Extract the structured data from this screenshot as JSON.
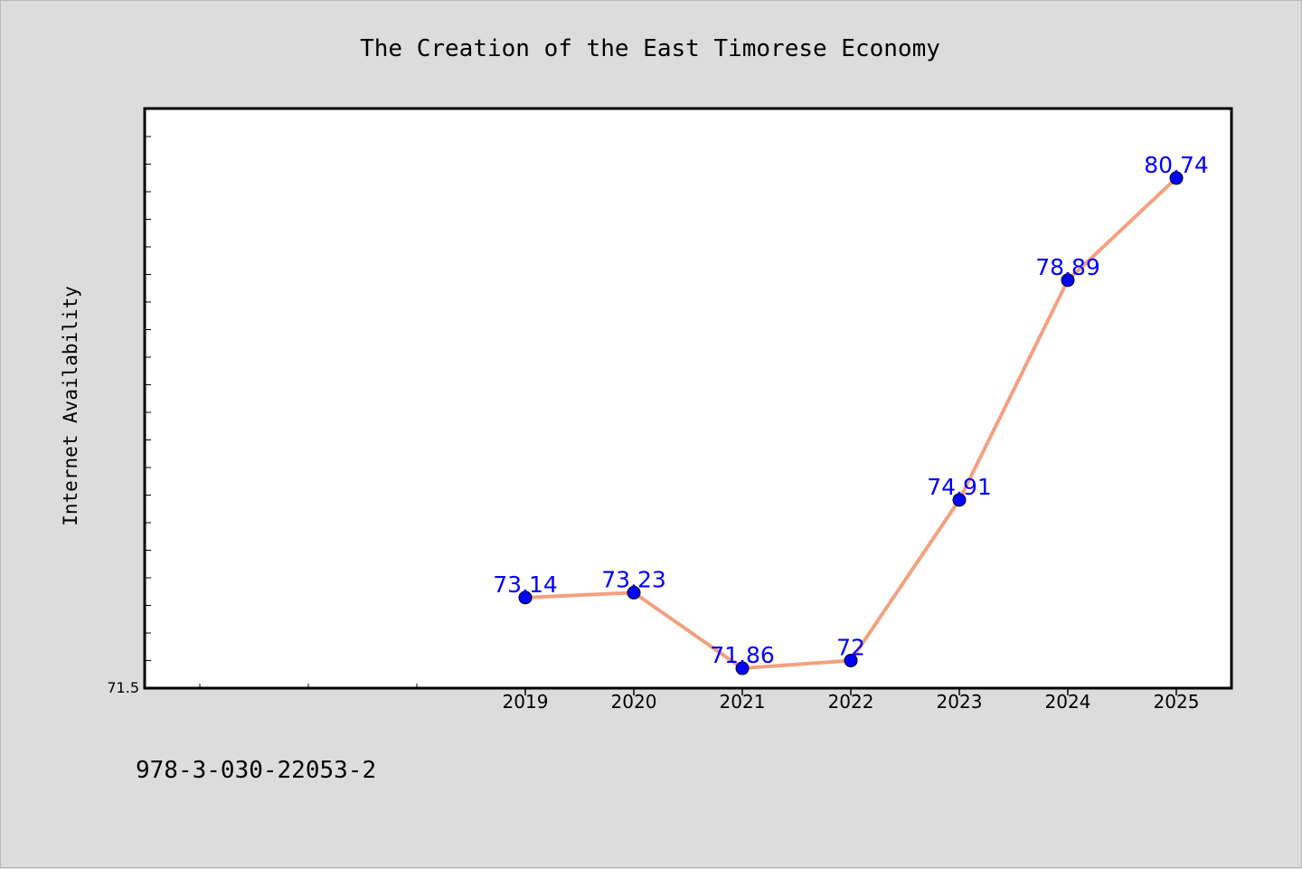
{
  "chart_data": {
    "type": "line",
    "title": "The Creation of the East Timorese Economy",
    "xlabel": "",
    "ylabel": "Internet Availability",
    "categories": [
      "2019",
      "2020",
      "2021",
      "2022",
      "2023",
      "2024",
      "2025"
    ],
    "series": [
      {
        "values": [
          73.14,
          73.23,
          71.86,
          72,
          74.91,
          78.89,
          80.74
        ],
        "labels": [
          "73.14",
          "73.23",
          "71.86",
          "72",
          "74.91",
          "78.89",
          "80.74"
        ]
      }
    ],
    "ylim": [
      71.5,
      82.0
    ],
    "y_tick_labels": [
      "71.5"
    ],
    "grid": false,
    "legend": "none",
    "colors": {
      "line": "#f4a07f",
      "marker": "#0000ff",
      "label": "#0000ff",
      "plot_background": "#ffffff",
      "figure_background": "#dcdcdc"
    }
  },
  "footer": {
    "isbn": "978-3-030-22053-2"
  }
}
